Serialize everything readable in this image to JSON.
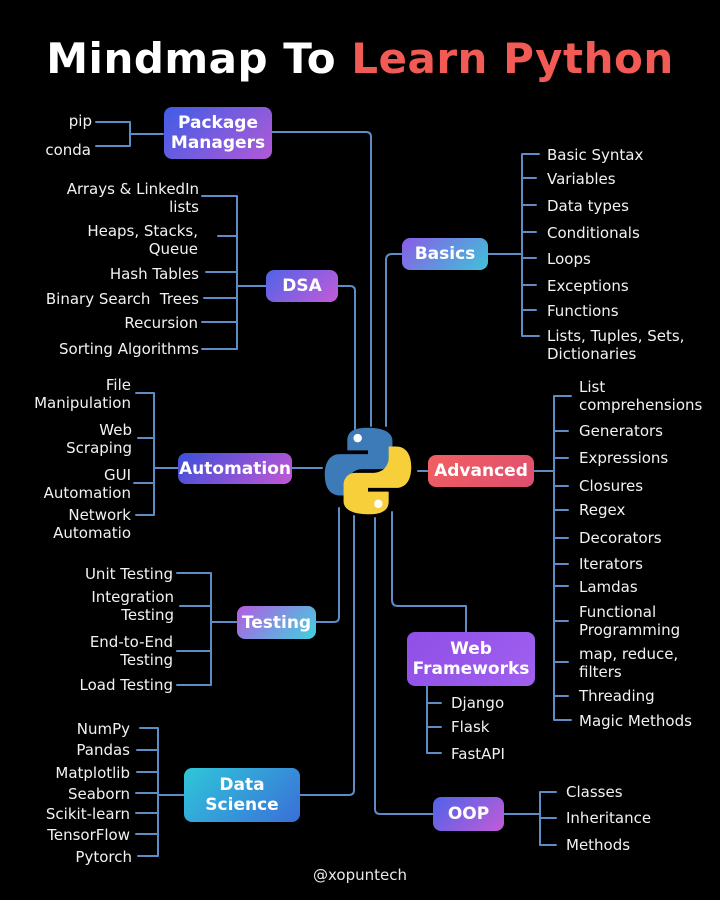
{
  "title": {
    "part1": "Mindmap To",
    "part2": "Learn Python"
  },
  "credit": "@xopuntech",
  "colors": {
    "line": "#5e8cc4",
    "accent_red": "#f15a55",
    "python_blue": "#3d7ab8",
    "python_yellow": "#f6cf3a"
  },
  "icons": {
    "center": "python-logo-icon"
  },
  "branches": {
    "package_managers": {
      "label": "Package\nManagers",
      "items": [
        "pip",
        "conda"
      ]
    },
    "dsa": {
      "label": "DSA",
      "items": [
        "Arrays & LinkedIn\nlists",
        "Heaps, Stacks,\nQueue",
        "Hash Tables",
        "Binary Search  Trees",
        "Recursion",
        "Sorting Algorithms"
      ]
    },
    "automation": {
      "label": "Automation",
      "items": [
        "File\nManipulation",
        "Web\nScraping",
        "GUI\nAutomation",
        "Network\nAutomatio"
      ]
    },
    "testing": {
      "label": "Testing",
      "items": [
        "Unit Testing",
        "Integration\nTesting",
        "End-to-End\nTesting",
        "Load Testing"
      ]
    },
    "data_science": {
      "label": "Data\nScience",
      "items": [
        "NumPy",
        "Pandas",
        "Matplotlib",
        "Seaborn",
        "Scikit-learn",
        "TensorFlow",
        "Pytorch"
      ]
    },
    "basics": {
      "label": "Basics",
      "items": [
        "Basic Syntax",
        "Variables",
        "Data types",
        "Conditionals",
        "Loops",
        "Exceptions",
        "Functions",
        "Lists, Tuples, Sets,\nDictionaries"
      ]
    },
    "advanced": {
      "label": "Advanced",
      "items": [
        "List\ncomprehensions",
        "Generators",
        "Expressions",
        "Closures",
        "Regex",
        "Decorators",
        "Iterators",
        "Lamdas",
        "Functional\nProgramming",
        "map, reduce,\nfilters",
        "Threading",
        "Magic Methods"
      ]
    },
    "web_frameworks": {
      "label": "Web\nFrameworks",
      "items": [
        "Django",
        "Flask",
        "FastAPI"
      ]
    },
    "oop": {
      "label": "OOP",
      "items": [
        "Classes",
        "Inheritance",
        "Methods"
      ]
    }
  }
}
